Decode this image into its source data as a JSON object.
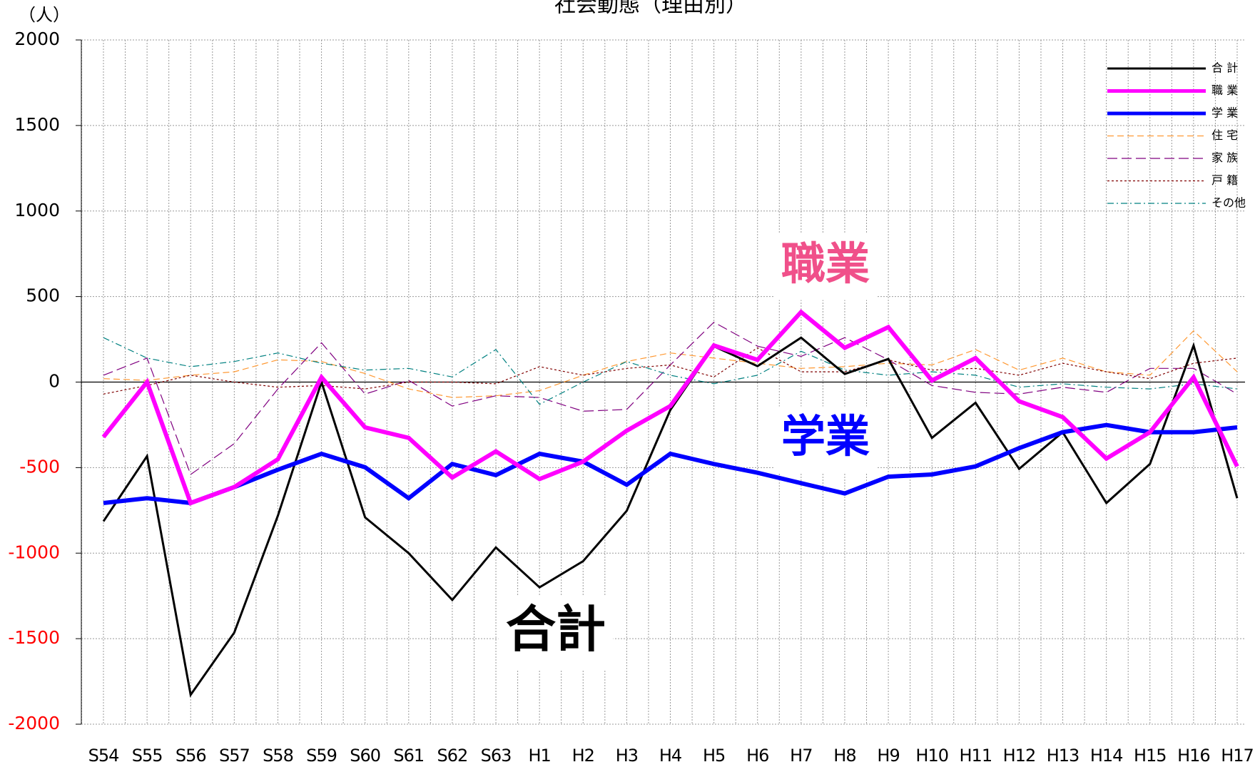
{
  "chart_data": {
    "type": "line",
    "title": "社会動態（理由別）",
    "y_unit": "（人）",
    "categories": [
      "S54",
      "S55",
      "S56",
      "S57",
      "S58",
      "S59",
      "S60",
      "S61",
      "S62",
      "S63",
      "H1",
      "H2",
      "H3",
      "H4",
      "H5",
      "H6",
      "H7",
      "H8",
      "H9",
      "H10",
      "H11",
      "H12",
      "H13",
      "H14",
      "H15",
      "H16",
      "H17"
    ],
    "series": [
      {
        "name": "合 計",
        "color": "#000000",
        "width": 3,
        "dash": "none",
        "values": [
          -814,
          -433,
          -1828,
          -1465,
          -781,
          0,
          -791,
          -1000,
          -1274,
          -967,
          -1200,
          -1047,
          -753,
          -163,
          209,
          93,
          260,
          47,
          135,
          -326,
          -121,
          -507,
          -293,
          -707,
          -479,
          214,
          -679
        ]
      },
      {
        "name": "職 業",
        "color": "#ff00ff",
        "width": 6,
        "dash": "none",
        "values": [
          -321,
          0,
          -707,
          -614,
          -451,
          28,
          -265,
          -326,
          -558,
          -405,
          -567,
          -465,
          -284,
          -140,
          214,
          130,
          409,
          200,
          321,
          9,
          140,
          -112,
          -205,
          -447,
          -293,
          28,
          -493
        ]
      },
      {
        "name": "学 業",
        "color": "#0000ff",
        "width": 6,
        "dash": "none",
        "values": [
          -707,
          -679,
          -707,
          -614,
          -512,
          -419,
          -498,
          -679,
          -479,
          -544,
          -419,
          -465,
          -600,
          -419,
          -479,
          -530,
          -591,
          -651,
          -553,
          -540,
          -493,
          -386,
          -293,
          -251,
          -293,
          -293,
          -265
        ]
      },
      {
        "name": "住 宅",
        "color": "#ff9933",
        "width": 1.2,
        "dash": "9 5",
        "values": [
          20,
          10,
          40,
          60,
          130,
          120,
          50,
          -40,
          -90,
          -80,
          -50,
          40,
          120,
          170,
          140,
          110,
          80,
          90,
          110,
          100,
          190,
          70,
          140,
          60,
          40,
          300,
          60
        ]
      },
      {
        "name": "家 族",
        "color": "#800080",
        "width": 1.2,
        "dash": "14 6",
        "values": [
          40,
          140,
          -540,
          -360,
          -40,
          230,
          -70,
          10,
          -140,
          -80,
          -90,
          -170,
          -160,
          100,
          350,
          210,
          150,
          260,
          130,
          -20,
          -60,
          -70,
          -30,
          -60,
          80,
          80,
          -70
        ]
      },
      {
        "name": "戸 籍",
        "color": "#800000",
        "width": 1.2,
        "dash": "3 3",
        "values": [
          -70,
          -20,
          40,
          0,
          -30,
          -20,
          -40,
          0,
          0,
          -10,
          90,
          40,
          80,
          100,
          30,
          200,
          60,
          60,
          130,
          70,
          80,
          40,
          110,
          60,
          20,
          110,
          140
        ]
      },
      {
        "name": "その他",
        "color": "#008080",
        "width": 1.2,
        "dash": "9 4 2 4",
        "values": [
          260,
          140,
          90,
          120,
          170,
          110,
          70,
          80,
          30,
          190,
          -130,
          0,
          120,
          40,
          -10,
          40,
          180,
          70,
          40,
          60,
          40,
          -30,
          -10,
          -30,
          -40,
          -10,
          -40
        ]
      }
    ],
    "annotations": [
      {
        "text": "職業",
        "color": "#f0508a",
        "series": 1
      },
      {
        "text": "学業",
        "color": "#0000ff",
        "series": 2
      },
      {
        "text": "合計",
        "color": "#000000",
        "series": 0
      }
    ],
    "ylim": [
      -2000,
      2000
    ],
    "yticks": [
      -2000,
      -1500,
      -1000,
      -500,
      0,
      500,
      1000,
      1500,
      2000
    ],
    "negative_tick_color": "#ff0000",
    "grid": true,
    "legend": "upper right"
  }
}
